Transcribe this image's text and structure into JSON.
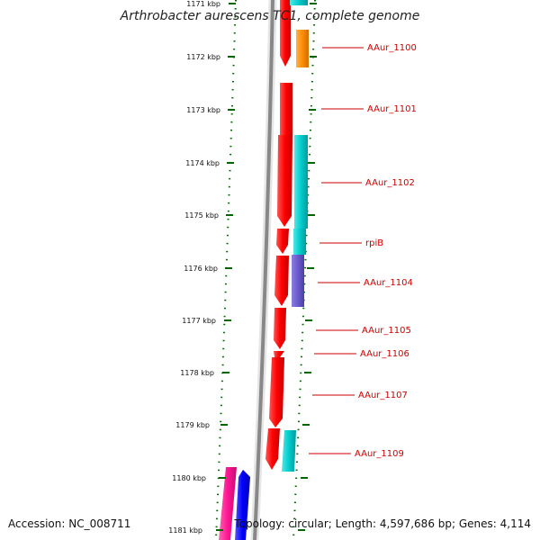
{
  "title": "Arthrobacter aurescens TC1, complete genome",
  "accession": "Accession: NC_008711",
  "summary": "Topology: circular; Length: 4,597,686 bp; Genes: 4,114",
  "colors": {
    "backbone": "#888888",
    "forward_gene": "#ff0000",
    "label_line": "#cc0000",
    "label_text": "#cc0000",
    "tick": "#006600",
    "orange": "#ff8c00",
    "cyan": "#00cccc",
    "purple": "#6a5acd",
    "magenta": "#ff1493",
    "blue": "#0000ff"
  },
  "ticks": [
    "1171 kbp",
    "1172 kbp",
    "1173 kbp",
    "1174 kbp",
    "1175 kbp",
    "1176 kbp",
    "1177 kbp",
    "1178 kbp",
    "1179 kbp",
    "1180 kbp",
    "1181 kbp"
  ],
  "gene_labels": [
    "AAur_1100",
    "AAur_1101",
    "AAur_1102",
    "rpiB",
    "AAur_1104",
    "AAur_1105",
    "AAur_1106",
    "AAur_1107",
    "AAur_1109"
  ]
}
